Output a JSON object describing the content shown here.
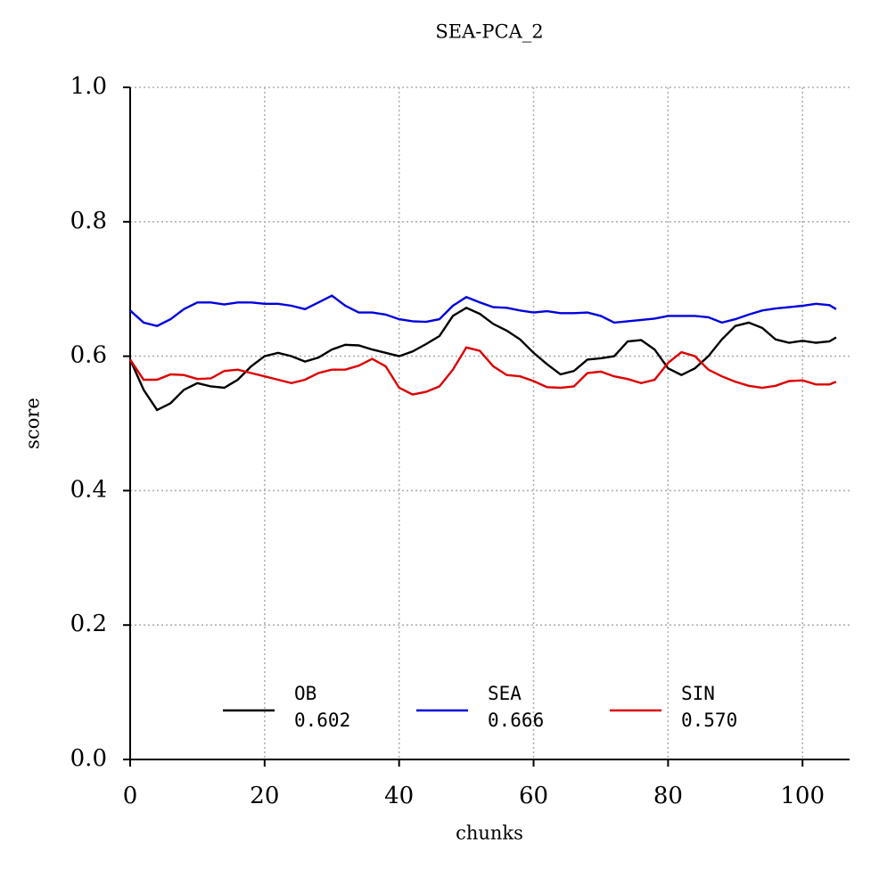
{
  "chart_data": {
    "type": "line",
    "title": "SEA-PCA_2",
    "xlabel": "chunks",
    "ylabel": "score",
    "x": [
      0,
      2,
      4,
      6,
      8,
      10,
      12,
      14,
      16,
      18,
      20,
      22,
      24,
      26,
      28,
      30,
      32,
      34,
      36,
      38,
      40,
      42,
      44,
      46,
      48,
      50,
      52,
      54,
      56,
      58,
      60,
      62,
      64,
      66,
      68,
      70,
      72,
      74,
      76,
      78,
      80,
      82,
      84,
      86,
      88,
      90,
      92,
      94,
      96,
      98,
      100,
      102,
      104,
      105
    ],
    "series": [
      {
        "name": "OB",
        "color": "#000000",
        "mean": {
          "value": 0.602,
          "label": "0.602"
        },
        "values": [
          0.595,
          0.55,
          0.52,
          0.53,
          0.55,
          0.56,
          0.555,
          0.553,
          0.565,
          0.585,
          0.6,
          0.605,
          0.6,
          0.592,
          0.598,
          0.61,
          0.617,
          0.616,
          0.61,
          0.605,
          0.6,
          0.607,
          0.618,
          0.63,
          0.66,
          0.672,
          0.663,
          0.648,
          0.638,
          0.625,
          0.605,
          0.588,
          0.573,
          0.578,
          0.595,
          0.597,
          0.6,
          0.622,
          0.624,
          0.61,
          0.582,
          0.572,
          0.582,
          0.6,
          0.625,
          0.645,
          0.65,
          0.642,
          0.625,
          0.62,
          0.623,
          0.62,
          0.622,
          0.628
        ]
      },
      {
        "name": "SEA",
        "color": "#0000dd",
        "mean": {
          "value": 0.666,
          "label": "0.666"
        },
        "values": [
          0.668,
          0.65,
          0.645,
          0.655,
          0.67,
          0.68,
          0.68,
          0.677,
          0.68,
          0.68,
          0.678,
          0.678,
          0.675,
          0.67,
          0.68,
          0.69,
          0.675,
          0.665,
          0.665,
          0.662,
          0.655,
          0.652,
          0.651,
          0.655,
          0.675,
          0.688,
          0.68,
          0.673,
          0.672,
          0.668,
          0.665,
          0.667,
          0.664,
          0.664,
          0.665,
          0.66,
          0.65,
          0.652,
          0.654,
          0.656,
          0.66,
          0.66,
          0.66,
          0.658,
          0.65,
          0.655,
          0.662,
          0.668,
          0.671,
          0.673,
          0.675,
          0.678,
          0.676,
          0.67
        ]
      },
      {
        "name": "SIN",
        "color": "#dd0000",
        "mean": {
          "value": 0.57,
          "label": "0.570"
        },
        "values": [
          0.595,
          0.565,
          0.565,
          0.573,
          0.572,
          0.566,
          0.567,
          0.578,
          0.58,
          0.575,
          0.57,
          0.565,
          0.56,
          0.565,
          0.575,
          0.58,
          0.58,
          0.586,
          0.596,
          0.585,
          0.553,
          0.543,
          0.547,
          0.555,
          0.58,
          0.613,
          0.608,
          0.585,
          0.572,
          0.57,
          0.563,
          0.554,
          0.553,
          0.555,
          0.575,
          0.577,
          0.57,
          0.566,
          0.56,
          0.565,
          0.59,
          0.606,
          0.6,
          0.58,
          0.57,
          0.562,
          0.556,
          0.553,
          0.556,
          0.563,
          0.564,
          0.558,
          0.558,
          0.562
        ]
      }
    ],
    "xlim": [
      0,
      107
    ],
    "ylim": [
      0,
      1
    ],
    "xticks": [
      0,
      20,
      40,
      60,
      80,
      100
    ],
    "yticks": [
      {
        "value": 0,
        "label": "0.0"
      },
      0.2,
      0.4,
      0.6,
      0.8,
      {
        "value": 1,
        "label": "1.0"
      }
    ],
    "grid": true,
    "legend": "lower center"
  }
}
